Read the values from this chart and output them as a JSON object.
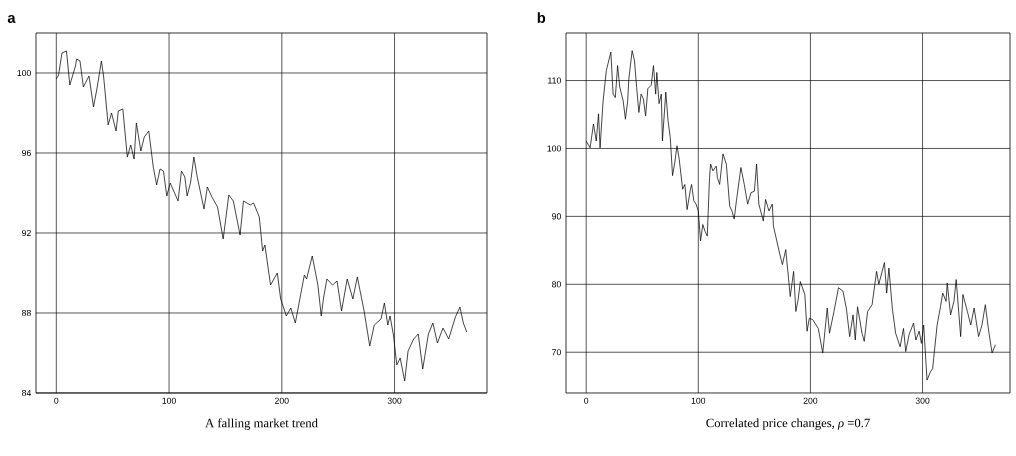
{
  "chart_data": [
    {
      "type": "line",
      "title": "a",
      "xlabel": "A falling market trend",
      "color": "#000000",
      "grid": true,
      "xlim": [
        -18,
        382
      ],
      "ylim": [
        84,
        102
      ],
      "xticks": [
        0,
        100,
        200,
        300
      ],
      "yticks": [
        84,
        88,
        92,
        96,
        100
      ],
      "x": [
        0,
        2,
        5,
        9,
        12,
        17,
        18,
        21,
        24,
        29,
        33,
        36,
        40,
        42,
        46,
        49,
        53,
        55,
        59,
        63,
        66,
        69,
        71,
        75,
        78,
        82,
        86,
        89,
        92,
        95,
        98,
        101,
        108,
        111,
        114,
        116,
        119,
        122,
        125,
        131,
        134,
        138,
        143,
        148,
        153,
        157,
        163,
        166,
        172,
        175,
        180,
        183,
        185,
        187,
        190,
        196,
        199,
        204,
        208,
        212,
        220,
        222,
        227,
        232,
        235,
        237,
        240,
        245,
        249,
        253,
        258,
        263,
        267,
        273,
        278,
        282,
        288,
        291,
        294,
        296,
        299,
        302,
        305,
        309,
        312,
        317,
        321,
        325,
        330,
        334,
        338,
        343,
        348,
        354,
        358,
        361,
        364
      ],
      "values": [
        99.7,
        99.9,
        101.0,
        101.1,
        99.4,
        100.35,
        100.7,
        100.6,
        99.3,
        99.85,
        98.3,
        99.2,
        100.6,
        99.8,
        97.4,
        98.0,
        97.1,
        98.1,
        98.2,
        95.8,
        96.4,
        95.7,
        97.5,
        96.1,
        96.8,
        97.1,
        95.3,
        94.4,
        95.2,
        95.1,
        93.85,
        94.5,
        93.6,
        95.1,
        94.8,
        93.85,
        94.5,
        95.8,
        94.8,
        93.2,
        94.3,
        93.8,
        93.3,
        91.7,
        93.9,
        93.6,
        91.9,
        93.6,
        93.4,
        93.5,
        92.8,
        91.1,
        91.4,
        90.6,
        89.4,
        90.0,
        88.7,
        87.85,
        88.25,
        87.5,
        89.9,
        89.7,
        90.85,
        89.4,
        87.85,
        88.75,
        89.7,
        89.4,
        89.6,
        88.1,
        89.7,
        88.7,
        89.8,
        88.1,
        86.35,
        87.4,
        87.7,
        88.5,
        87.4,
        87.85,
        86.9,
        85.4,
        85.75,
        84.6,
        86.1,
        86.7,
        86.95,
        85.2,
        86.95,
        87.5,
        86.5,
        87.25,
        86.7,
        87.8,
        88.3,
        87.5,
        87.05
      ]
    },
    {
      "type": "line",
      "title": "b",
      "xlabel": "Correlated price changes, *ρ* =0.7",
      "color": "#000000",
      "grid": true,
      "xlim": [
        -18,
        378
      ],
      "ylim": [
        64,
        117
      ],
      "xticks": [
        0,
        100,
        200,
        300
      ],
      "yticks": [
        70,
        80,
        90,
        100,
        110
      ],
      "x": [
        0,
        3.5,
        6.5,
        9,
        11,
        12.4,
        15,
        17,
        18,
        22,
        24,
        26,
        28,
        30,
        33,
        35,
        37,
        38,
        41,
        43,
        45,
        47,
        49,
        51,
        53,
        55,
        58,
        60,
        62,
        63,
        65,
        67,
        68,
        71,
        73,
        75,
        77,
        79,
        81,
        83,
        86,
        88,
        90,
        93,
        94,
        96,
        98,
        100,
        102,
        104,
        106,
        108,
        110,
        111,
        113,
        116,
        117,
        119,
        122,
        125,
        128,
        130,
        132,
        134,
        138,
        141,
        144,
        147,
        150,
        152,
        154,
        158,
        160,
        163,
        166,
        167,
        172,
        175,
        178,
        182,
        185,
        187,
        189,
        191,
        195,
        197,
        199,
        202,
        207,
        211,
        215,
        217,
        221,
        225,
        229,
        232,
        235,
        238,
        240,
        242,
        246,
        248,
        251,
        255,
        259,
        261,
        266,
        268,
        270,
        273,
        276,
        280,
        283,
        285,
        288,
        292,
        294,
        297,
        299,
        301,
        304,
        307,
        309,
        313,
        316,
        318,
        321,
        322,
        325,
        328,
        330,
        334,
        336,
        340,
        343,
        346,
        350,
        353,
        356,
        359,
        362,
        365
      ],
      "values": [
        101.1,
        100.1,
        103.6,
        101.1,
        105.1,
        100.1,
        106.8,
        110.0,
        111.5,
        114.2,
        108.0,
        107.5,
        112.2,
        109.0,
        107.0,
        104.3,
        107.0,
        110.2,
        114.4,
        113.0,
        109.0,
        105.3,
        108.0,
        107.3,
        104.8,
        108.8,
        109.3,
        112.2,
        108.0,
        111.2,
        106.6,
        108.0,
        101.1,
        108.3,
        104.1,
        101.6,
        96.0,
        97.9,
        100.4,
        98.4,
        94.0,
        94.7,
        91.0,
        94.0,
        94.7,
        92.3,
        91.8,
        90.8,
        86.4,
        88.8,
        87.8,
        87.1,
        95.7,
        97.7,
        96.7,
        97.4,
        95.7,
        94.7,
        99.2,
        97.7,
        91.5,
        90.8,
        89.6,
        92.3,
        97.2,
        94.7,
        91.8,
        93.5,
        93.7,
        97.7,
        91.8,
        89.3,
        92.5,
        90.8,
        91.8,
        88.6,
        84.9,
        82.9,
        85.1,
        78.2,
        81.9,
        76.0,
        77.7,
        80.4,
        78.5,
        73.1,
        75.0,
        74.8,
        73.5,
        69.9,
        76.5,
        72.8,
        76.0,
        79.5,
        79.0,
        76.5,
        72.3,
        75.5,
        71.8,
        76.7,
        72.8,
        71.6,
        76.0,
        77.0,
        81.9,
        80.0,
        83.2,
        78.7,
        82.4,
        76.5,
        72.8,
        70.8,
        73.5,
        70.1,
        72.6,
        74.3,
        71.8,
        73.1,
        71.3,
        74.0,
        65.9,
        67.1,
        67.6,
        74.0,
        76.7,
        78.7,
        77.5,
        80.2,
        75.5,
        77.5,
        80.7,
        72.3,
        78.5,
        76.0,
        74.0,
        76.5,
        72.3,
        74.0,
        77.0,
        73.1,
        69.9,
        71.1
      ]
    }
  ]
}
